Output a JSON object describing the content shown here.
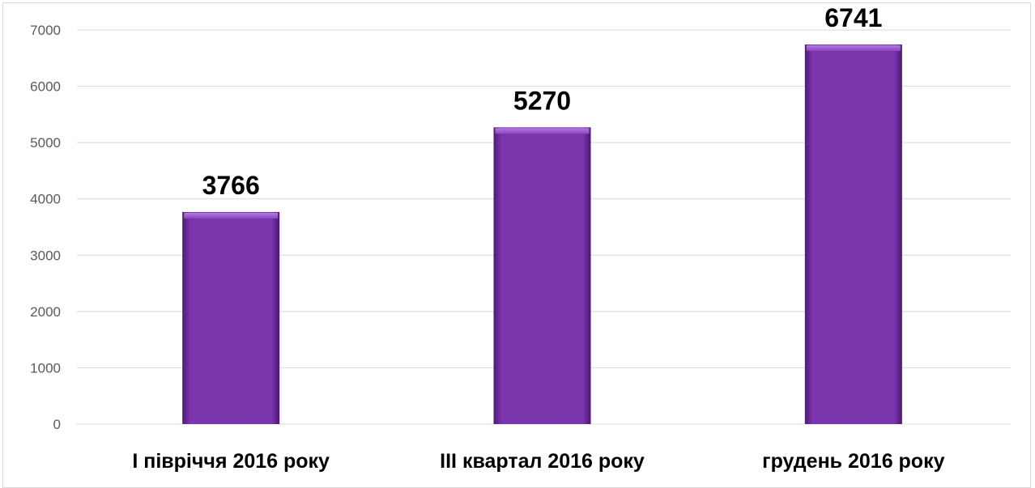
{
  "chart_data": {
    "type": "bar",
    "title": "",
    "xlabel": "",
    "ylabel": "",
    "categories": [
      "I півріччя 2016 року",
      "III квартал 2016 року",
      "грудень 2016 року"
    ],
    "values": [
      3766,
      5270,
      6741
    ],
    "data_labels": [
      "3766",
      "5270",
      "6741"
    ],
    "ylim": [
      0,
      7000
    ],
    "yticks": [
      0,
      1000,
      2000,
      3000,
      4000,
      5000,
      6000,
      7000
    ],
    "ytick_labels": [
      "0",
      "1000",
      "2000",
      "3000",
      "4000",
      "5000",
      "6000",
      "7000"
    ],
    "grid": true,
    "legend": "none",
    "colors": {
      "bar": "#7030a0",
      "bar_light": "#9b4fd0",
      "bar_dark": "#4a1670",
      "grid": "#d9d9d9",
      "tick_text": "#595959"
    }
  }
}
